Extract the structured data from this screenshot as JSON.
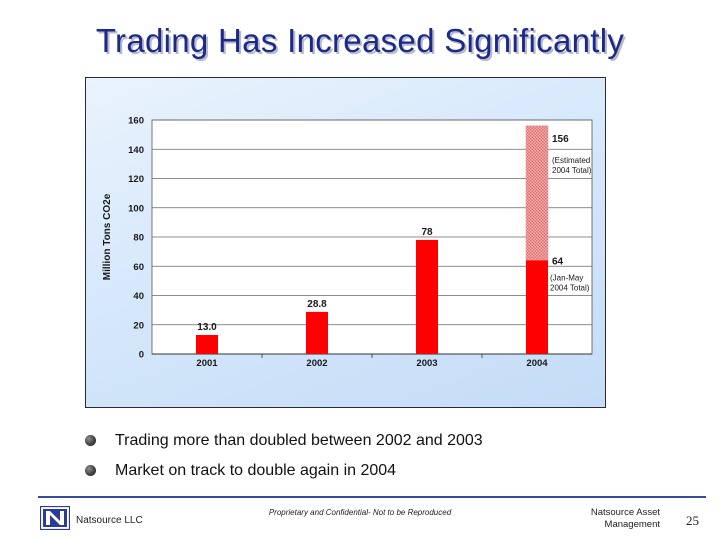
{
  "slide": {
    "title": "Trading Has Increased Significantly",
    "bullets": [
      "Trading more than doubled between 2002 and 2003",
      "Market on track to double again in 2004"
    ]
  },
  "footer": {
    "company": "Natsource LLC",
    "confidential": "Proprietary and Confidential- Not to be Reproduced",
    "right_line1": "Natsource Asset",
    "right_line2": "Management",
    "page_number": "25"
  },
  "colors": {
    "title": "#1b2a8a",
    "bar": "#ff0000",
    "estimate_bar": "#f2a3a3",
    "footer_rule": "#3a4aa0"
  },
  "chart_data": {
    "type": "bar",
    "title": "",
    "xlabel": "",
    "ylabel": "Million Tons CO2e",
    "categories": [
      "2001",
      "2002",
      "2003",
      "2004"
    ],
    "values": [
      13.0,
      28.8,
      78,
      64
    ],
    "value_labels": [
      "13.0",
      "28.8",
      "78",
      "64"
    ],
    "estimate": {
      "category": "2004",
      "value": 156,
      "label": "156",
      "note": "(Estimated 2004 Total)"
    },
    "actual_note": {
      "category": "2004",
      "text": "(Jan-May 2004 Total)"
    },
    "ylim": [
      0,
      160
    ],
    "yticks": [
      0,
      20,
      40,
      60,
      80,
      100,
      120,
      140,
      160
    ],
    "grid": true,
    "legend": "none"
  }
}
